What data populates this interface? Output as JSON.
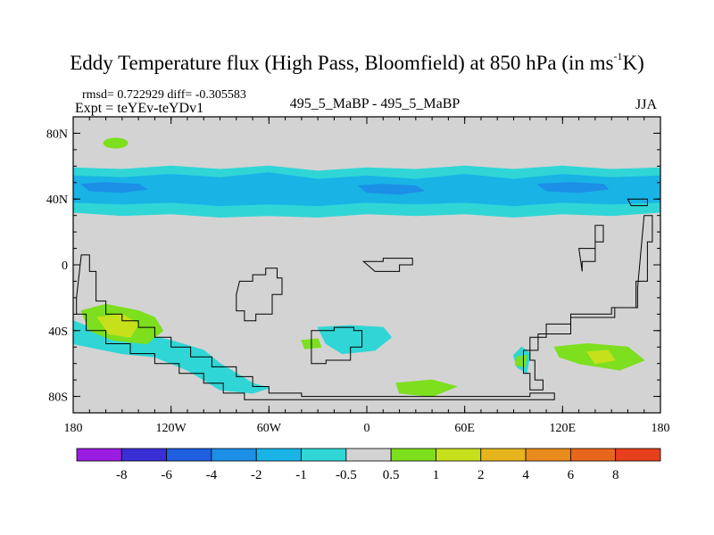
{
  "chart_data": {
    "type": "heatmap",
    "title": "Eddy Temperature flux (High Pass, Bloomfield) at 850 hPa (in ms",
    "title_sup": "-1",
    "title_end": "K)",
    "stats_text": "rmsd= 0.722929 diff= -0.305583",
    "expt_text": "Expt = teYEv-teYDv1",
    "center_text": "495_5_MaBP - 495_5_MaBP",
    "season": "JJA",
    "xlim": [
      -180,
      180
    ],
    "ylim": [
      -90,
      90
    ],
    "x_ticks": [
      {
        "value": -180,
        "label": "180"
      },
      {
        "value": -120,
        "label": "120W"
      },
      {
        "value": -60,
        "label": "60W"
      },
      {
        "value": 0,
        "label": "0"
      },
      {
        "value": 60,
        "label": "60E"
      },
      {
        "value": 120,
        "label": "120E"
      },
      {
        "value": 180,
        "label": "180"
      }
    ],
    "y_ticks": [
      {
        "value": 80,
        "label": "80N"
      },
      {
        "value": 40,
        "label": "40N"
      },
      {
        "value": 0,
        "label": "0"
      },
      {
        "value": -40,
        "label": "40S"
      },
      {
        "value": -80,
        "label": "80S"
      }
    ],
    "background_color": "#d3d3d3",
    "colorbar": {
      "levels": [
        "-8",
        "-6",
        "-4",
        "-2",
        "-1",
        "-0.5",
        "0.5",
        "1",
        "2",
        "4",
        "6",
        "8"
      ],
      "colors": [
        "#9a1ce0",
        "#3a2fd6",
        "#1f5fe0",
        "#1c8fe6",
        "#19b3e6",
        "#30d6d6",
        "#d3d3d3",
        "#7ddf1e",
        "#c7e01c",
        "#e6b41c",
        "#e88a1c",
        "#e8661c",
        "#e8401c"
      ]
    },
    "regions": [
      {
        "name": "nh-midlat-band-outer",
        "color": "#30d6d6",
        "points": [
          [
            -180,
            59
          ],
          [
            -150,
            58
          ],
          [
            -120,
            60
          ],
          [
            -90,
            58
          ],
          [
            -60,
            60
          ],
          [
            -30,
            57
          ],
          [
            0,
            59
          ],
          [
            30,
            58
          ],
          [
            60,
            60
          ],
          [
            90,
            58
          ],
          [
            120,
            60
          ],
          [
            150,
            58
          ],
          [
            180,
            59
          ],
          [
            180,
            32
          ],
          [
            150,
            30
          ],
          [
            120,
            31
          ],
          [
            90,
            29
          ],
          [
            60,
            31
          ],
          [
            30,
            30
          ],
          [
            0,
            31
          ],
          [
            -30,
            29
          ],
          [
            -60,
            30
          ],
          [
            -90,
            29
          ],
          [
            -120,
            31
          ],
          [
            -150,
            30
          ],
          [
            -180,
            32
          ]
        ]
      },
      {
        "name": "nh-midlat-band-inner",
        "color": "#19b3e6",
        "points": [
          [
            -180,
            54
          ],
          [
            -150,
            53
          ],
          [
            -120,
            55
          ],
          [
            -90,
            53
          ],
          [
            -60,
            56
          ],
          [
            -30,
            52
          ],
          [
            0,
            54
          ],
          [
            30,
            52
          ],
          [
            60,
            55
          ],
          [
            90,
            52
          ],
          [
            120,
            55
          ],
          [
            150,
            53
          ],
          [
            180,
            54
          ],
          [
            180,
            38
          ],
          [
            150,
            37
          ],
          [
            120,
            38
          ],
          [
            90,
            36
          ],
          [
            60,
            38
          ],
          [
            30,
            37
          ],
          [
            0,
            38
          ],
          [
            -30,
            36
          ],
          [
            -60,
            37
          ],
          [
            -90,
            36
          ],
          [
            -120,
            38
          ],
          [
            -150,
            37
          ],
          [
            -180,
            38
          ]
        ]
      },
      {
        "name": "nh-midlat-core-west",
        "color": "#1c8fe6",
        "points": [
          [
            -175,
            49
          ],
          [
            -160,
            50
          ],
          [
            -140,
            49
          ],
          [
            -135,
            46
          ],
          [
            -150,
            44
          ],
          [
            -170,
            45
          ]
        ]
      },
      {
        "name": "nh-midlat-core-center",
        "color": "#1c8fe6",
        "points": [
          [
            -5,
            48
          ],
          [
            10,
            49
          ],
          [
            30,
            48
          ],
          [
            35,
            45
          ],
          [
            20,
            43
          ],
          [
            0,
            44
          ]
        ]
      },
      {
        "name": "nh-midlat-core-east",
        "color": "#1c8fe6",
        "points": [
          [
            105,
            49
          ],
          [
            125,
            50
          ],
          [
            145,
            49
          ],
          [
            148,
            46
          ],
          [
            130,
            44
          ],
          [
            110,
            45
          ]
        ]
      },
      {
        "name": "arctic-green-west",
        "color": "#7ddf1e",
        "points": [
          [
            -158,
            74
          ],
          [
            -150,
            76
          ],
          0,
          0
        ]
      },
      {
        "name": "sh-teal-west",
        "color": "#30d6d6",
        "points": [
          [
            -180,
            -34
          ],
          [
            -170,
            -38
          ],
          [
            -160,
            -40
          ],
          [
            -140,
            -42
          ],
          [
            -120,
            -46
          ],
          [
            -100,
            -52
          ],
          [
            -90,
            -60
          ],
          [
            -80,
            -66
          ],
          [
            -70,
            -72
          ],
          [
            -60,
            -75
          ],
          [
            -70,
            -78
          ],
          [
            -90,
            -76
          ],
          [
            -110,
            -64
          ],
          [
            -130,
            -56
          ],
          [
            -150,
            -54
          ],
          [
            -170,
            -50
          ],
          [
            -180,
            -48
          ]
        ]
      },
      {
        "name": "sh-teal-center",
        "color": "#30d6d6",
        "points": [
          [
            -30,
            -38
          ],
          [
            -10,
            -37
          ],
          [
            10,
            -38
          ],
          [
            15,
            -44
          ],
          [
            5,
            -52
          ],
          [
            -15,
            -54
          ],
          [
            -25,
            -48
          ]
        ]
      },
      {
        "name": "sh-teal-east",
        "color": "#30d6d6",
        "points": [
          [
            95,
            -50
          ],
          [
            100,
            -54
          ],
          [
            98,
            -66
          ],
          [
            92,
            -62
          ],
          [
            90,
            -55
          ]
        ]
      },
      {
        "name": "sh-green-west",
        "color": "#7ddf1e",
        "points": [
          [
            -175,
            -28
          ],
          [
            -160,
            -24
          ],
          [
            -140,
            -28
          ],
          [
            -130,
            -32
          ],
          [
            -125,
            -40
          ],
          [
            -135,
            -48
          ],
          [
            -155,
            -46
          ],
          [
            -170,
            -40
          ]
        ]
      },
      {
        "name": "sh-yellow-west",
        "color": "#c7e01c",
        "points": [
          [
            -165,
            -32
          ],
          [
            -150,
            -30
          ],
          [
            -140,
            -36
          ],
          [
            -145,
            -44
          ],
          [
            -158,
            -42
          ]
        ]
      },
      {
        "name": "sh-green-center",
        "color": "#7ddf1e",
        "points": [
          [
            18,
            -72
          ],
          [
            40,
            -70
          ],
          [
            55,
            -74
          ],
          [
            40,
            -80
          ],
          [
            20,
            -78
          ]
        ]
      },
      {
        "name": "sh-green-east",
        "color": "#7ddf1e",
        "points": [
          [
            115,
            -50
          ],
          [
            135,
            -48
          ],
          [
            160,
            -50
          ],
          [
            170,
            -58
          ],
          [
            155,
            -64
          ],
          [
            130,
            -60
          ],
          [
            118,
            -56
          ]
        ]
      },
      {
        "name": "sh-yellow-east",
        "color": "#c7e01c",
        "points": [
          [
            135,
            -53
          ],
          [
            148,
            -52
          ],
          [
            152,
            -58
          ],
          [
            140,
            -60
          ]
        ]
      },
      {
        "name": "sh-green-small-center",
        "color": "#7ddf1e",
        "points": [
          [
            -40,
            -46
          ],
          [
            -30,
            -45
          ],
          [
            -28,
            -50
          ],
          [
            -38,
            -51
          ]
        ]
      },
      {
        "name": "sh-green-small-mid",
        "color": "#7ddf1e",
        "points": [
          [
            92,
            -56
          ],
          [
            98,
            -55
          ],
          [
            97,
            -62
          ],
          [
            91,
            -61
          ]
        ]
      }
    ],
    "land_outline": "M-180,-90 Z"
  }
}
